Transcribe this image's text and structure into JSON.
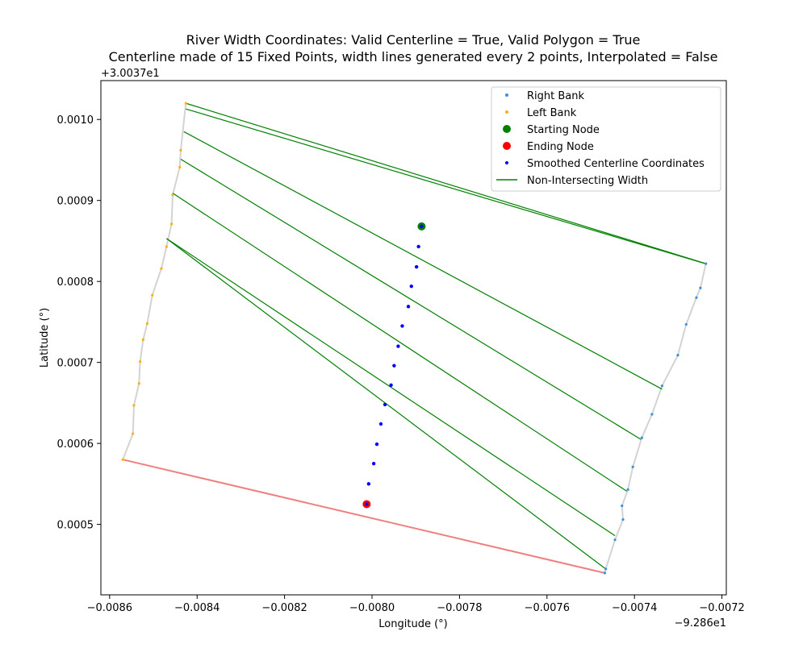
{
  "chart_data": {
    "type": "scatter",
    "title_line1": "River Width Coordinates: Valid Centerline = True, Valid Polygon = True",
    "title_line2": "Centerline made of 15 Fixed Points, width lines generated every 2 points, Interpolated = False",
    "xlabel": "Longitude (°)",
    "ylabel": "Latitude (°)",
    "x_offset_label": "−9.286e1",
    "y_offset_label": "+3.0037e1",
    "xlim": [
      -0.00862,
      -0.00719
    ],
    "ylim": [
      0.000413,
      0.001048
    ],
    "x_ticks": [
      -0.0086,
      -0.0084,
      -0.0082,
      -0.008,
      -0.0078,
      -0.0076,
      -0.0074,
      -0.0072
    ],
    "x_tick_labels": [
      "−0.0086",
      "−0.0084",
      "−0.0082",
      "−0.0080",
      "−0.0078",
      "−0.0076",
      "−0.0074",
      "−0.0072"
    ],
    "y_ticks": [
      0.0005,
      0.0006,
      0.0007,
      0.0008,
      0.0009,
      0.001
    ],
    "y_tick_labels": [
      "0.0005",
      "0.0006",
      "0.0007",
      "0.0008",
      "0.0009",
      "0.0010"
    ],
    "legend_position": "top-right",
    "legend": [
      {
        "label": "Right Bank",
        "kind": "dot-small",
        "color": "#3a8fe0"
      },
      {
        "label": "Left Bank",
        "kind": "dot-small",
        "color": "#ffb000"
      },
      {
        "label": "Starting Node",
        "kind": "dot-large",
        "color": "#008000"
      },
      {
        "label": "Ending Node",
        "kind": "dot-large",
        "color": "#ff0000"
      },
      {
        "label": "Smoothed Centerline Coordinates",
        "kind": "dot-small",
        "color": "#0000ff"
      },
      {
        "label": "Non-Intersecting Width",
        "kind": "line",
        "color": "#008000"
      }
    ],
    "colors": {
      "right_bank": "#3a8fe0",
      "left_bank": "#ffb000",
      "bank_line": "#d3d3d3",
      "centerline": "#0000ff",
      "start": "#008000",
      "end": "#ff0000",
      "width_line": "#008000",
      "end_width_line": "#f08080"
    },
    "right_bank": [
      [
        -0.0072367,
        0.000822
      ],
      [
        -0.0072492,
        0.000792
      ],
      [
        -0.0072584,
        0.00078
      ],
      [
        -0.0072817,
        0.000747
      ],
      [
        -0.0073008,
        0.000709
      ],
      [
        -0.0073369,
        0.000671
      ],
      [
        -0.0073599,
        0.000636
      ],
      [
        -0.0073831,
        0.000607
      ],
      [
        -0.0074037,
        0.000571
      ],
      [
        -0.0074149,
        0.000543
      ],
      [
        -0.0074285,
        0.000523
      ],
      [
        -0.0074262,
        0.000506
      ],
      [
        -0.0074445,
        0.000481
      ],
      [
        -0.0074656,
        0.000445
      ],
      [
        -0.0074679,
        0.00044
      ]
    ],
    "left_bank": [
      [
        -0.0084257,
        0.00102
      ],
      [
        -0.0084374,
        0.000962
      ],
      [
        -0.0084397,
        0.000941
      ],
      [
        -0.0084558,
        0.000907
      ],
      [
        -0.0084583,
        0.000871
      ],
      [
        -0.0084699,
        0.000843
      ],
      [
        -0.0084816,
        0.000816
      ],
      [
        -0.0085024,
        0.000783
      ],
      [
        -0.0085141,
        0.000748
      ],
      [
        -0.0085234,
        0.000728
      ],
      [
        -0.0085303,
        0.000701
      ],
      [
        -0.0085327,
        0.000674
      ],
      [
        -0.0085444,
        0.000647
      ],
      [
        -0.0085468,
        0.000612
      ],
      [
        -0.0085698,
        0.00058
      ]
    ],
    "centerline": [
      [
        -0.0078867,
        0.000868
      ],
      [
        -0.0078937,
        0.000843
      ],
      [
        -0.0078983,
        0.000818
      ],
      [
        -0.00791,
        0.000794
      ],
      [
        -0.007917,
        0.000769
      ],
      [
        -0.0079309,
        0.000745
      ],
      [
        -0.0079402,
        0.00072
      ],
      [
        -0.0079495,
        0.000696
      ],
      [
        -0.0079565,
        0.000672
      ],
      [
        -0.0079704,
        0.000648
      ],
      [
        -0.0079797,
        0.000624
      ],
      [
        -0.007989,
        0.000599
      ],
      [
        -0.0079961,
        0.000575
      ],
      [
        -0.0080077,
        0.00055
      ],
      [
        -0.0080123,
        0.000525
      ]
    ],
    "start_node": [
      -0.0078867,
      0.000868
    ],
    "end_node": [
      -0.0080123,
      0.000525
    ],
    "width_lines": [
      [
        [
          -0.0084257,
          0.00102
        ],
        [
          -0.0072367,
          0.000822
        ]
      ],
      [
        [
          -0.0084257,
          0.001013
        ],
        [
          -0.0072384,
          0.000822
        ]
      ],
      [
        [
          -0.0084304,
          0.000985
        ],
        [
          -0.0073369,
          0.000667
        ]
      ],
      [
        [
          -0.0084374,
          0.000951
        ],
        [
          -0.0073853,
          0.000605
        ]
      ],
      [
        [
          -0.0084558,
          0.000909
        ],
        [
          -0.0074176,
          0.000541
        ]
      ],
      [
        [
          -0.0084699,
          0.000853
        ],
        [
          -0.0074445,
          0.000486
        ]
      ],
      [
        [
          -0.0084699,
          0.000853
        ],
        [
          -0.0074656,
          0.000445
        ]
      ]
    ],
    "end_width_line": [
      [
        -0.0085698,
        0.00058
      ],
      [
        -0.0074679,
        0.00044
      ]
    ]
  }
}
